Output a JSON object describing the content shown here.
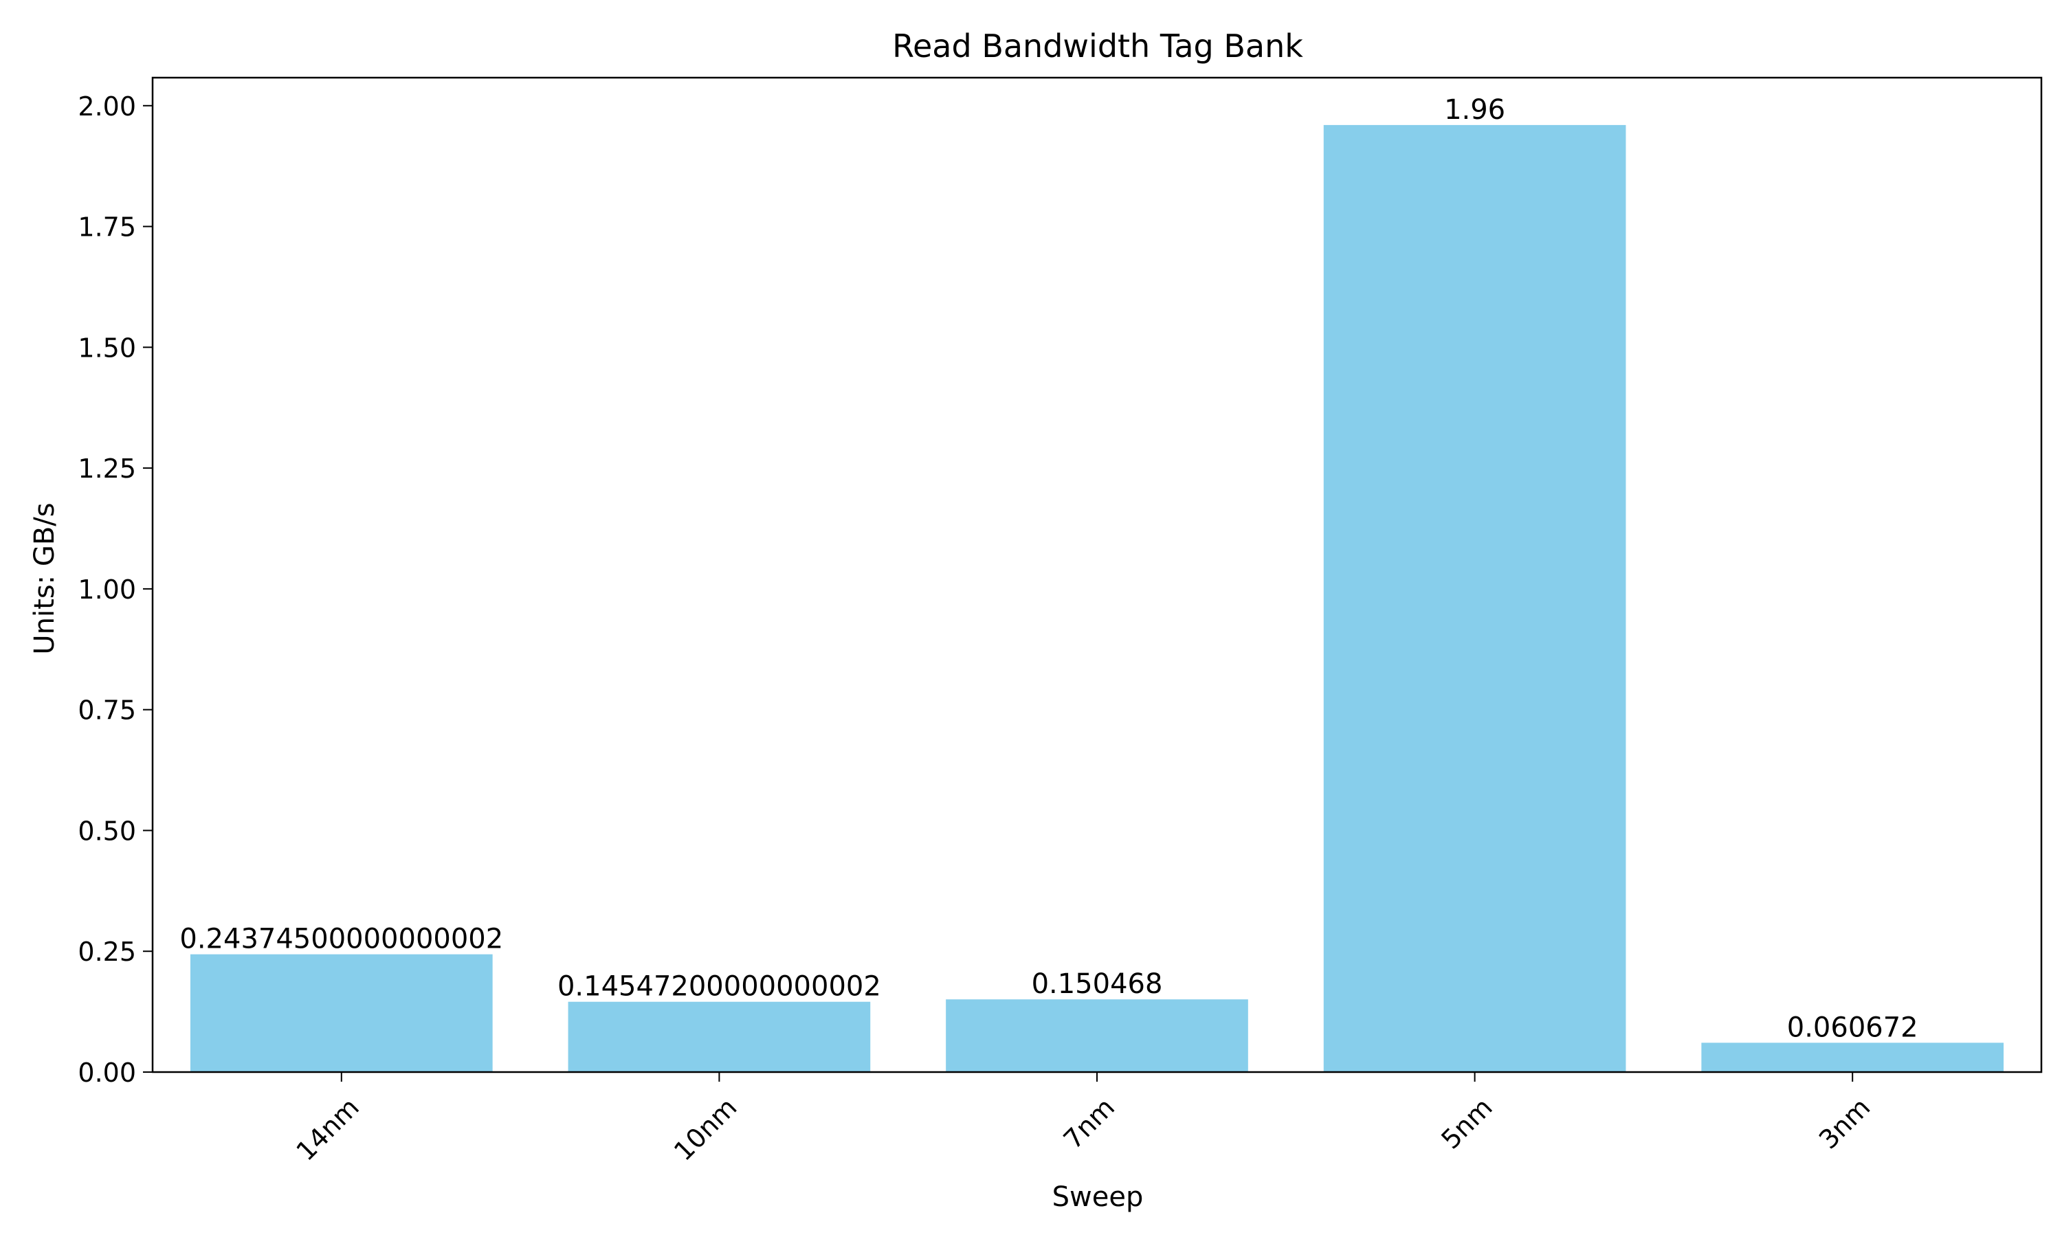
{
  "chart_data": {
    "type": "bar",
    "title": "Read Bandwidth Tag Bank",
    "xlabel": "Sweep",
    "ylabel": "Units: GB/s",
    "categories": [
      "14nm",
      "10nm",
      "7nm",
      "5nm",
      "3nm"
    ],
    "values": [
      0.24374500000000002,
      0.14547200000000002,
      0.150468,
      1.96,
      0.060672
    ],
    "value_labels": [
      "0.24374500000000002",
      "0.14547200000000002",
      "0.150468",
      "1.96",
      "0.060672"
    ],
    "yticks": [
      0,
      0.25,
      0.5,
      0.75,
      1.0,
      1.25,
      1.5,
      1.75,
      2.0
    ],
    "ytick_labels": [
      "0.00",
      "0.25",
      "0.50",
      "0.75",
      "1.00",
      "1.25",
      "1.50",
      "1.75",
      "2.00"
    ],
    "ylim": [
      0,
      2.058
    ],
    "bar_color": "#87CEEB",
    "grid": false,
    "legend": "none"
  }
}
